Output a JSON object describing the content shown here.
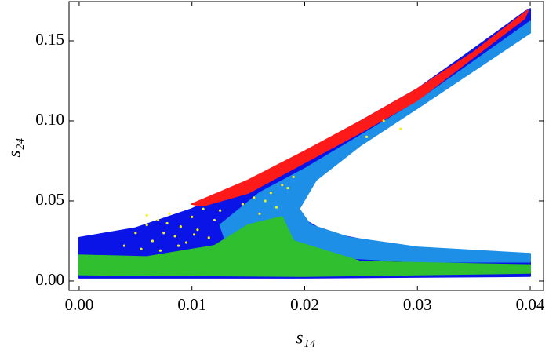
{
  "chart_data": {
    "type": "scatter",
    "xlabel": "s₁₄",
    "ylabel": "s₂₄",
    "xlim": [
      -0.0009,
      0.04118
    ],
    "ylim": [
      -0.0059,
      0.1745
    ],
    "xticks": [
      {
        "value": 0,
        "label": "0.00"
      },
      {
        "value": 0.01,
        "label": "0.01"
      },
      {
        "value": 0.02,
        "label": "0.02"
      },
      {
        "value": 0.03,
        "label": "0.03"
      },
      {
        "value": 0.04,
        "label": "0.04"
      }
    ],
    "yticks": [
      {
        "value": 0,
        "label": "0.00"
      },
      {
        "value": 0.05,
        "label": "0.05"
      },
      {
        "value": 0.1,
        "label": "0.10"
      },
      {
        "value": 0.15,
        "label": "0.15"
      }
    ],
    "series": [
      {
        "color": "#0a14e6",
        "mode": "region",
        "x": [
          0,
          0.005,
          0.01,
          0.015,
          0.02,
          0.025,
          0.03,
          0.035,
          0.0395,
          0.04,
          0.04,
          0.03,
          0.025,
          0.021,
          0.0192,
          0.0195,
          0.022,
          0.028,
          0.035,
          0.04,
          0.04,
          0.02,
          0
        ],
        "values": [
          0.027,
          0.033,
          0.045,
          0.062,
          0.08,
          0.1,
          0.12,
          0.145,
          0.168,
          0.17,
          0.16,
          0.113,
          0.088,
          0.068,
          0.05,
          0.04,
          0.03,
          0.022,
          0.017,
          0.016,
          0.003,
          0.002,
          0.002
        ]
      },
      {
        "color": "#1e8fe6",
        "mode": "region",
        "x": [
          0.0125,
          0.016,
          0.02,
          0.03,
          0.04,
          0.04,
          0.03,
          0.025,
          0.021,
          0.0195,
          0.0205,
          0.024,
          0.03,
          0.04,
          0.04,
          0.03,
          0.025,
          0.02,
          0.015,
          0.013
        ],
        "values": [
          0.035,
          0.055,
          0.07,
          0.112,
          0.162,
          0.155,
          0.108,
          0.085,
          0.063,
          0.045,
          0.035,
          0.027,
          0.021,
          0.017,
          0.012,
          0.012,
          0.014,
          0.016,
          0.02,
          0.025
        ]
      },
      {
        "color": "#2fbf2f",
        "mode": "region",
        "x": [
          0,
          0.006,
          0.012,
          0.015,
          0.018,
          0.019,
          0.025,
          0.04,
          0.04,
          0.02,
          0
        ],
        "values": [
          0.016,
          0.015,
          0.022,
          0.035,
          0.04,
          0.025,
          0.012,
          0.01,
          0.005,
          0.003,
          0.004
        ]
      },
      {
        "color": "#ff1a1a",
        "mode": "region",
        "x": [
          0.01,
          0.015,
          0.02,
          0.025,
          0.03,
          0.035,
          0.0398,
          0.0395,
          0.035,
          0.03,
          0.025,
          0.02,
          0.015,
          0.011
        ],
        "values": [
          0.048,
          0.063,
          0.081,
          0.1,
          0.12,
          0.143,
          0.169,
          0.164,
          0.14,
          0.113,
          0.093,
          0.074,
          0.055,
          0.047
        ]
      },
      {
        "color": "#f2f21a",
        "mode": "points",
        "x": [
          0.004,
          0.005,
          0.006,
          0.0065,
          0.007,
          0.0075,
          0.008,
          0.0085,
          0.009,
          0.0095,
          0.01,
          0.0105,
          0.011,
          0.0115,
          0.012,
          0.0055,
          0.0072,
          0.0088,
          0.0102,
          0.0125,
          0.0145,
          0.0155,
          0.016,
          0.017,
          0.0175,
          0.018,
          0.019,
          0.0165,
          0.0185,
          0.0255,
          0.027,
          0.0285,
          0.006,
          0.0078
        ],
        "values": [
          0.022,
          0.03,
          0.035,
          0.025,
          0.038,
          0.03,
          0.042,
          0.028,
          0.034,
          0.024,
          0.04,
          0.032,
          0.045,
          0.027,
          0.038,
          0.02,
          0.019,
          0.022,
          0.029,
          0.044,
          0.048,
          0.052,
          0.042,
          0.055,
          0.046,
          0.06,
          0.065,
          0.05,
          0.058,
          0.09,
          0.1,
          0.095,
          0.041,
          0.036
        ]
      }
    ]
  }
}
